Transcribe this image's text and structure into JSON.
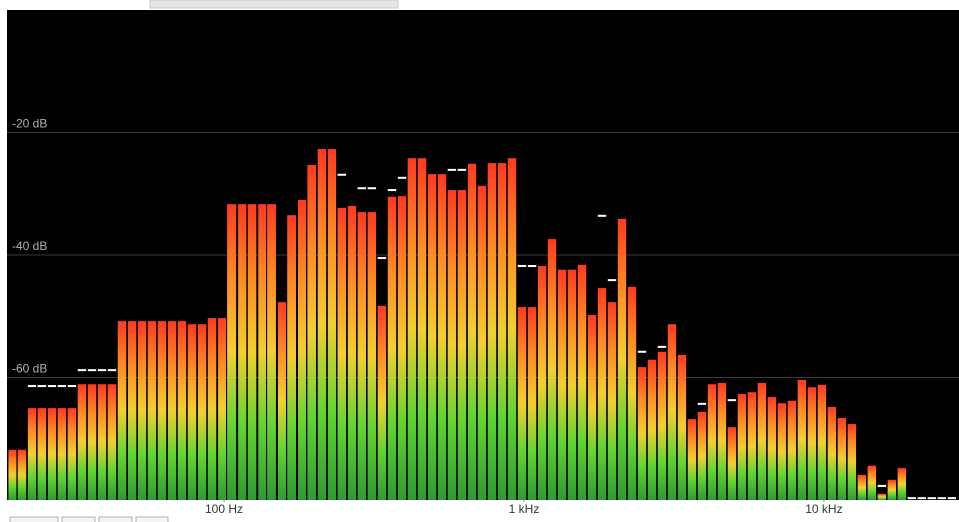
{
  "chart_data": {
    "type": "bar",
    "x": [
      19.7,
      21.2,
      22.9,
      24.7,
      26.7,
      28.8,
      31.1,
      33.6,
      36.3,
      39.2,
      42.3,
      45.7,
      49.4,
      53.3,
      57.5,
      62.1,
      67.1,
      72.4,
      78.2,
      84.5,
      91.2,
      98.5,
      106,
      115,
      124,
      134,
      144,
      156,
      168,
      182,
      196,
      212,
      229,
      247,
      267,
      288,
      311,
      336,
      363,
      392,
      423,
      457,
      494,
      533,
      575,
      621,
      671,
      724,
      782,
      845,
      912,
      985,
      1064,
      1149,
      1240,
      1339,
      1446,
      1561,
      1686,
      1820,
      1965,
      2122,
      2291,
      2474,
      2671,
      2884,
      3114,
      3362,
      3630,
      3920,
      4233,
      4570,
      4934,
      5328,
      5753,
      6211,
      6707,
      7242,
      7819,
      8443,
      9116,
      9843,
      10628,
      11475,
      12390,
      13378,
      14445,
      15597,
      16841,
      18184,
      19634,
      21200,
      22891,
      24716,
      26688
    ],
    "values": [
      -71.8,
      -71.8,
      -65.0,
      -65.0,
      -65.0,
      -65.0,
      -65.0,
      -61.1,
      -61.1,
      -61.1,
      -61.1,
      -50.8,
      -50.8,
      -50.8,
      -50.8,
      -50.8,
      -50.8,
      -50.8,
      -51.3,
      -51.3,
      -50.3,
      -50.3,
      -31.7,
      -31.7,
      -31.7,
      -31.7,
      -31.7,
      -47.7,
      -33.5,
      -31.0,
      -25.3,
      -22.7,
      -22.7,
      -32.3,
      -32.0,
      -33.0,
      -33.0,
      -48.3,
      -30.5,
      -30.4,
      -24.2,
      -24.2,
      -26.8,
      -26.8,
      -29.4,
      -29.4,
      -25.1,
      -28.7,
      -25.0,
      -25.0,
      -24.2,
      -48.5,
      -48.5,
      -41.8,
      -37.4,
      -42.4,
      -42.4,
      -41.6,
      -49.8,
      -45.4,
      -47.7,
      -34.1,
      -45.2,
      -58.3,
      -57.1,
      -55.8,
      -51.3,
      -56.3,
      -66.8,
      -65.6,
      -61.1,
      -60.9,
      -68.1,
      -62.7,
      -62.4,
      -60.9,
      -63.2,
      -64.2,
      -63.8,
      -60.4,
      -61.6,
      -61.2,
      -64.8,
      -66.6,
      -67.6,
      -75.9,
      -74.4,
      -79,
      -76.7,
      -74.8,
      -80,
      -80,
      -80,
      -80,
      -80
    ],
    "peaks": [
      null,
      null,
      -61.4,
      -61.4,
      -61.4,
      -61.4,
      -61.4,
      -58.8,
      -58.8,
      -58.8,
      -58.8,
      null,
      null,
      null,
      null,
      null,
      null,
      null,
      null,
      null,
      null,
      null,
      null,
      null,
      null,
      null,
      null,
      null,
      null,
      null,
      null,
      null,
      null,
      -26.9,
      null,
      -29.1,
      -29.1,
      -40.5,
      -29.4,
      -27.4,
      null,
      null,
      null,
      null,
      -26.1,
      -26.1,
      null,
      null,
      null,
      null,
      null,
      -41.8,
      -41.8,
      null,
      null,
      null,
      null,
      null,
      null,
      -33.6,
      -44.1,
      null,
      null,
      -55.8,
      null,
      -55.0,
      null,
      null,
      null,
      -64.3,
      null,
      null,
      -63.7,
      null,
      null,
      null,
      null,
      null,
      null,
      null,
      null,
      null,
      null,
      null,
      null,
      null,
      null,
      -77.7,
      null,
      null,
      -79.7,
      -79.7,
      -79.7,
      -79.7,
      -79.7
    ],
    "xlim": [
      18.9,
      28200
    ],
    "xlog": true,
    "xticks": [
      {
        "value": 100,
        "label": "100 Hz"
      },
      {
        "value": 1000,
        "label": "1 kHz"
      },
      {
        "value": 10000,
        "label": "10 kHz"
      }
    ],
    "ylim": [
      -80,
      0
    ],
    "yticks": [
      {
        "value": -20,
        "label": "-20 dB"
      },
      {
        "value": -40,
        "label": "-40 dB"
      },
      {
        "value": -60,
        "label": "-60 dB"
      }
    ],
    "grid": true,
    "colors": [
      "#ff3a22",
      "#ff8c24",
      "#f2cf30",
      "#62d432",
      "#2f9a33"
    ],
    "peak_color": "#ffffff"
  }
}
